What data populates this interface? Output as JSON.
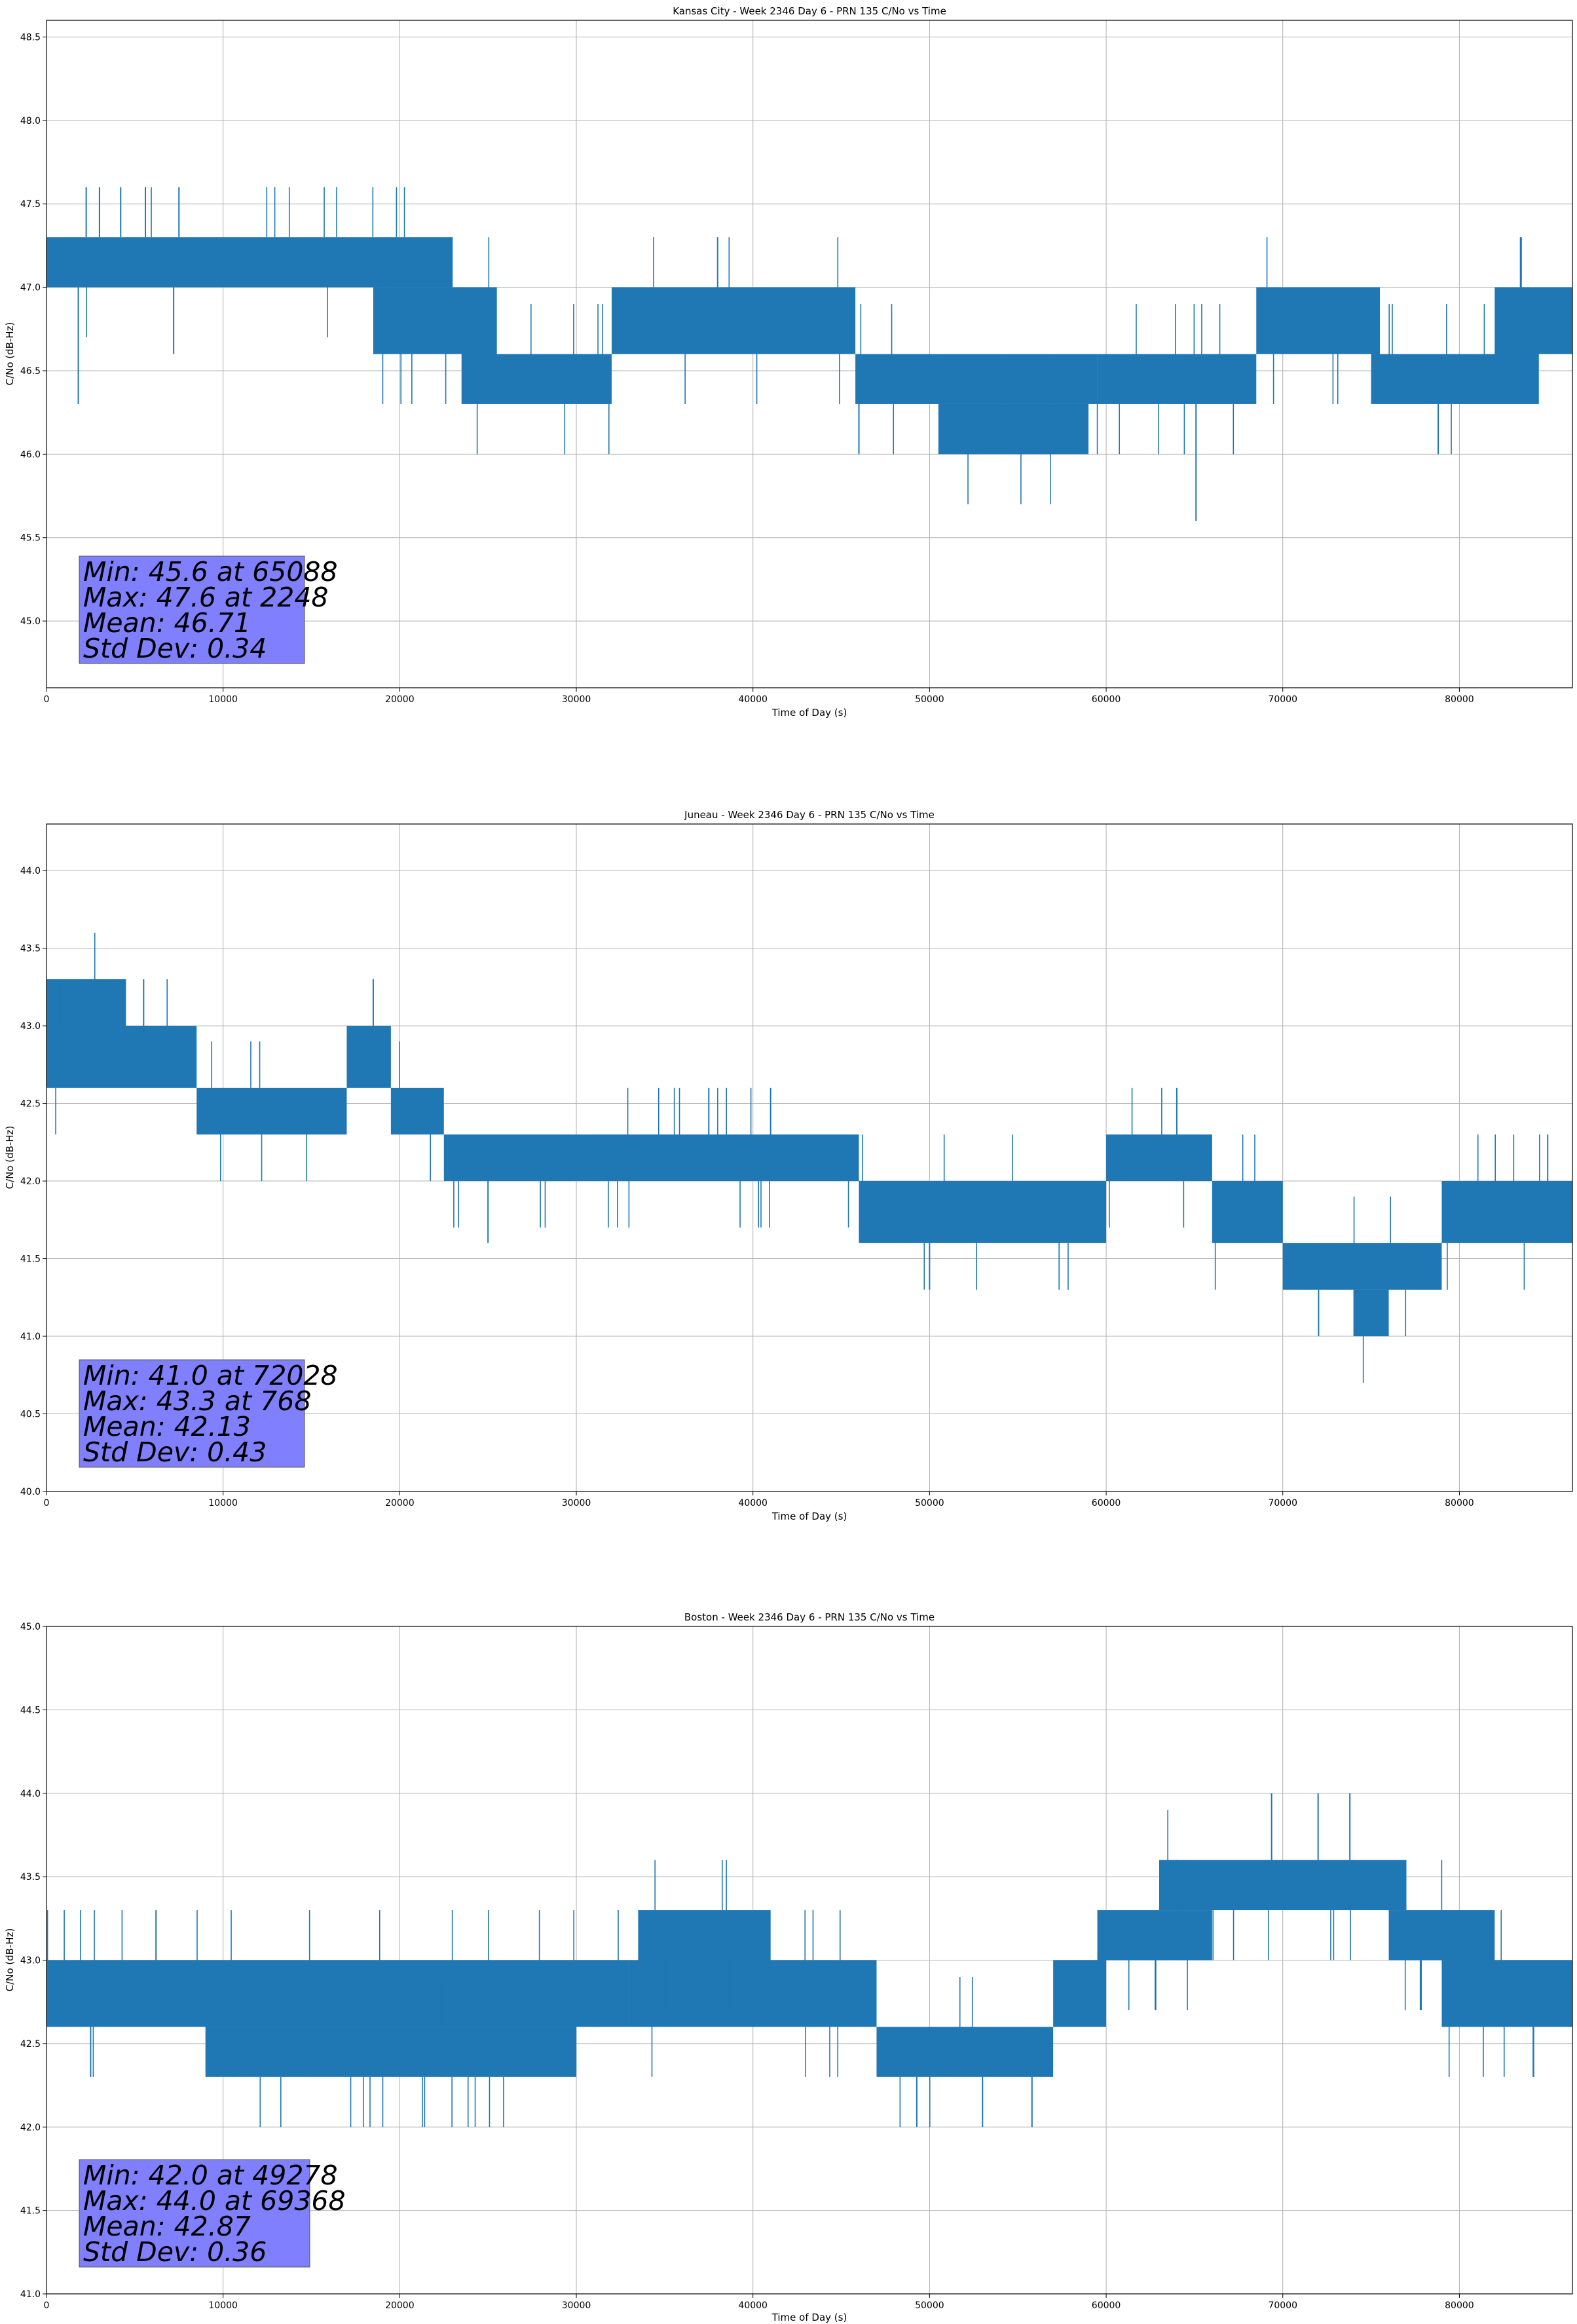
{
  "chart_data": [
    {
      "type": "line",
      "title": "Kansas City - Week 2346 Day 6 - PRN 135 C/No vs Time",
      "xlabel": "Time of Day (s)",
      "ylabel": "C/No (dB-Hz)",
      "xlim": [
        0,
        86400
      ],
      "ylim": [
        44.6,
        48.6
      ],
      "xticks": [
        0,
        10000,
        20000,
        30000,
        40000,
        50000,
        60000,
        70000,
        80000
      ],
      "xtick_labels": [
        "0",
        "10000",
        "20000",
        "30000",
        "40000",
        "50000",
        "60000",
        "70000",
        "80000"
      ],
      "yticks": [
        45.0,
        45.5,
        46.0,
        46.5,
        47.0,
        47.5,
        48.0,
        48.5
      ],
      "ytick_labels": [
        "45.0",
        "45.5",
        "46.0",
        "46.5",
        "47.0",
        "47.5",
        "48.0",
        "48.5"
      ],
      "grid": true,
      "series_color": "#1f77b4",
      "bands": [
        {
          "x0": 0,
          "x1": 23000,
          "lo": 47.0,
          "hi": 47.3
        },
        {
          "x0": 18500,
          "x1": 25500,
          "lo": 46.6,
          "hi": 47.0
        },
        {
          "x0": 23500,
          "x1": 32000,
          "lo": 46.3,
          "hi": 46.6
        },
        {
          "x0": 32000,
          "x1": 45800,
          "lo": 46.6,
          "hi": 47.0
        },
        {
          "x0": 45800,
          "x1": 59500,
          "lo": 46.3,
          "hi": 46.6
        },
        {
          "x0": 50500,
          "x1": 59000,
          "lo": 46.0,
          "hi": 46.3
        },
        {
          "x0": 59500,
          "x1": 68500,
          "lo": 46.3,
          "hi": 46.6
        },
        {
          "x0": 68500,
          "x1": 75500,
          "lo": 46.6,
          "hi": 47.0
        },
        {
          "x0": 75000,
          "x1": 84500,
          "lo": 46.3,
          "hi": 46.6
        },
        {
          "x0": 82000,
          "x1": 86400,
          "lo": 46.6,
          "hi": 47.0
        }
      ],
      "spikes": [
        {
          "x": 2248,
          "lo": 47.3,
          "hi": 47.6
        },
        {
          "x": 3000,
          "lo": 47.3,
          "hi": 47.6
        },
        {
          "x": 4200,
          "lo": 47.3,
          "hi": 47.6
        },
        {
          "x": 5600,
          "lo": 47.3,
          "hi": 47.6
        },
        {
          "x": 7500,
          "lo": 47.3,
          "hi": 47.6
        },
        {
          "x": 1800,
          "lo": 46.3,
          "hi": 47.0
        },
        {
          "x": 7200,
          "lo": 46.6,
          "hi": 47.0
        },
        {
          "x": 65088,
          "lo": 45.6,
          "hi": 46.3
        },
        {
          "x": 46000,
          "lo": 46.0,
          "hi": 46.6
        },
        {
          "x": 78800,
          "lo": 46.0,
          "hi": 46.6
        },
        {
          "x": 38000,
          "lo": 47.0,
          "hi": 47.3
        },
        {
          "x": 83500,
          "lo": 47.0,
          "hi": 47.3
        }
      ],
      "stats": {
        "min": "Min: 45.6 at 65088",
        "max": "Max: 47.6 at 2248",
        "mean": "Mean: 46.71",
        "std": "Std Dev: 0.34"
      }
    },
    {
      "type": "line",
      "title": "Juneau - Week 2346 Day 6 - PRN 135 C/No vs Time",
      "xlabel": "Time of Day (s)",
      "ylabel": "C/No (dB-Hz)",
      "xlim": [
        0,
        86400
      ],
      "ylim": [
        40.0,
        44.3
      ],
      "xticks": [
        0,
        10000,
        20000,
        30000,
        40000,
        50000,
        60000,
        70000,
        80000
      ],
      "xtick_labels": [
        "0",
        "10000",
        "20000",
        "30000",
        "40000",
        "50000",
        "60000",
        "70000",
        "80000"
      ],
      "yticks": [
        40.0,
        40.5,
        41.0,
        41.5,
        42.0,
        42.5,
        43.0,
        43.5,
        44.0
      ],
      "ytick_labels": [
        "40.0",
        "40.5",
        "41.0",
        "41.5",
        "42.0",
        "42.5",
        "43.0",
        "43.5",
        "44.0"
      ],
      "grid": true,
      "series_color": "#1f77b4",
      "bands": [
        {
          "x0": 0,
          "x1": 4500,
          "lo": 43.0,
          "hi": 43.3
        },
        {
          "x0": 0,
          "x1": 8500,
          "lo": 42.6,
          "hi": 43.0
        },
        {
          "x0": 8500,
          "x1": 17000,
          "lo": 42.3,
          "hi": 42.6
        },
        {
          "x0": 17000,
          "x1": 19500,
          "lo": 42.6,
          "hi": 43.0
        },
        {
          "x0": 19500,
          "x1": 22500,
          "lo": 42.3,
          "hi": 42.6
        },
        {
          "x0": 22500,
          "x1": 46000,
          "lo": 42.0,
          "hi": 42.3
        },
        {
          "x0": 46000,
          "x1": 60000,
          "lo": 41.6,
          "hi": 42.0
        },
        {
          "x0": 60000,
          "x1": 66000,
          "lo": 42.0,
          "hi": 42.3
        },
        {
          "x0": 66000,
          "x1": 70000,
          "lo": 41.6,
          "hi": 42.0
        },
        {
          "x0": 70000,
          "x1": 79000,
          "lo": 41.3,
          "hi": 41.6
        },
        {
          "x0": 74000,
          "x1": 76000,
          "lo": 41.0,
          "hi": 41.3
        },
        {
          "x0": 79000,
          "x1": 86400,
          "lo": 41.6,
          "hi": 42.0
        }
      ],
      "spikes": [
        {
          "x": 768,
          "lo": 43.0,
          "hi": 43.3
        },
        {
          "x": 5500,
          "lo": 43.0,
          "hi": 43.3
        },
        {
          "x": 18500,
          "lo": 43.0,
          "hi": 43.3
        },
        {
          "x": 37500,
          "lo": 42.3,
          "hi": 42.6
        },
        {
          "x": 41000,
          "lo": 42.3,
          "hi": 42.6
        },
        {
          "x": 64000,
          "lo": 42.3,
          "hi": 42.6
        },
        {
          "x": 72028,
          "lo": 41.0,
          "hi": 41.3
        },
        {
          "x": 50000,
          "lo": 41.3,
          "hi": 41.6
        },
        {
          "x": 85000,
          "lo": 42.0,
          "hi": 42.3
        },
        {
          "x": 25000,
          "lo": 41.6,
          "hi": 42.0
        }
      ],
      "stats": {
        "min": "Min: 41.0 at 72028",
        "max": "Max: 43.3 at 768",
        "mean": "Mean: 42.13",
        "std": "Std Dev: 0.43"
      }
    },
    {
      "type": "line",
      "title": "Boston - Week 2346 Day 6 - PRN 135 C/No vs Time",
      "xlabel": "Time of Day (s)",
      "ylabel": "C/No (dB-Hz)",
      "xlim": [
        0,
        86400
      ],
      "ylim": [
        41.0,
        45.0
      ],
      "xticks": [
        0,
        10000,
        20000,
        30000,
        40000,
        50000,
        60000,
        70000,
        80000
      ],
      "xtick_labels": [
        "0",
        "10000",
        "20000",
        "30000",
        "40000",
        "50000",
        "60000",
        "70000",
        "80000"
      ],
      "yticks": [
        41.0,
        41.5,
        42.0,
        42.5,
        43.0,
        43.5,
        44.0,
        44.5,
        45.0
      ],
      "ytick_labels": [
        "41.0",
        "41.5",
        "42.0",
        "42.5",
        "43.0",
        "43.5",
        "44.0",
        "44.5",
        "45.0"
      ],
      "grid": true,
      "series_color": "#1f77b4",
      "bands": [
        {
          "x0": 0,
          "x1": 33000,
          "lo": 42.6,
          "hi": 43.0
        },
        {
          "x0": 9000,
          "x1": 30000,
          "lo": 42.3,
          "hi": 42.6
        },
        {
          "x0": 33000,
          "x1": 47000,
          "lo": 42.6,
          "hi": 43.0
        },
        {
          "x0": 33500,
          "x1": 41000,
          "lo": 43.0,
          "hi": 43.3
        },
        {
          "x0": 47000,
          "x1": 57000,
          "lo": 42.3,
          "hi": 42.6
        },
        {
          "x0": 57000,
          "x1": 60000,
          "lo": 42.6,
          "hi": 43.0
        },
        {
          "x0": 59500,
          "x1": 66000,
          "lo": 43.0,
          "hi": 43.3
        },
        {
          "x0": 63000,
          "x1": 77000,
          "lo": 43.3,
          "hi": 43.6
        },
        {
          "x0": 76000,
          "x1": 82000,
          "lo": 43.0,
          "hi": 43.3
        },
        {
          "x0": 79000,
          "x1": 86400,
          "lo": 42.6,
          "hi": 43.0
        }
      ],
      "spikes": [
        {
          "x": 6200,
          "lo": 43.0,
          "hi": 43.3
        },
        {
          "x": 69368,
          "lo": 43.6,
          "hi": 44.0
        },
        {
          "x": 72000,
          "lo": 43.6,
          "hi": 44.0
        },
        {
          "x": 73800,
          "lo": 43.6,
          "hi": 44.0
        },
        {
          "x": 49278,
          "lo": 42.0,
          "hi": 42.3
        },
        {
          "x": 53000,
          "lo": 42.0,
          "hi": 42.3
        },
        {
          "x": 55800,
          "lo": 42.0,
          "hi": 42.3
        },
        {
          "x": 2500,
          "lo": 42.3,
          "hi": 42.6
        },
        {
          "x": 84200,
          "lo": 42.3,
          "hi": 42.6
        },
        {
          "x": 64000,
          "lo": 43.3,
          "hi": 43.6
        }
      ],
      "stats": {
        "min": "Min: 42.0 at 49278",
        "max": "Max: 44.0 at 69368",
        "mean": "Mean: 42.87",
        "std": "Std Dev: 0.36"
      }
    }
  ]
}
